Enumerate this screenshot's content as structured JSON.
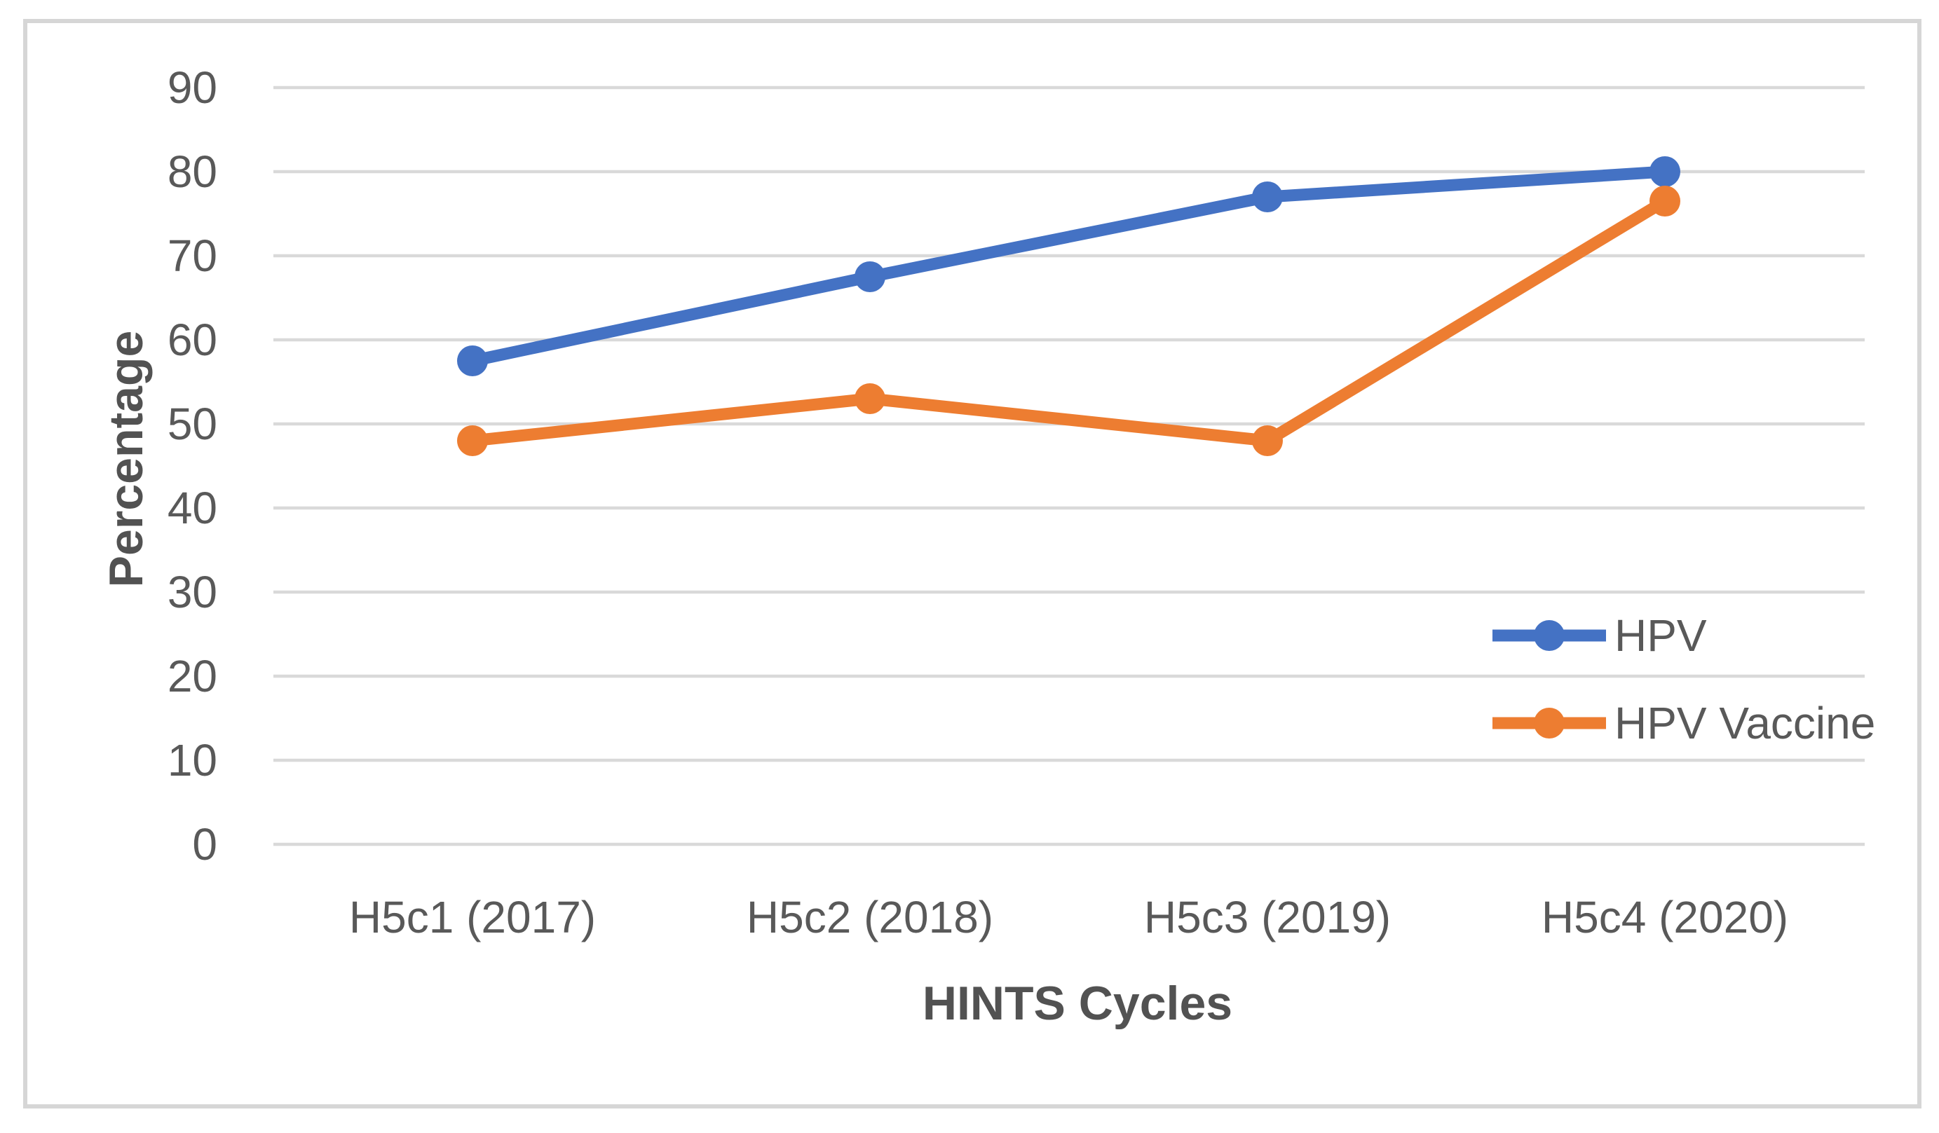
{
  "chart_data": {
    "type": "line",
    "title": "",
    "categories": [
      "H5c1 (2017)",
      "H5c2 (2018)",
      "H5c3 (2019)",
      "H5c4 (2020)"
    ],
    "series": [
      {
        "name": "HPV",
        "color": "#4472C4",
        "values": [
          57.5,
          67.5,
          77,
          80
        ]
      },
      {
        "name": "HPV Vaccine",
        "color": "#ED7D31",
        "values": [
          48,
          53,
          48,
          76.5
        ]
      }
    ],
    "xlabel": "HINTS Cycles",
    "ylabel": "Percentage",
    "ylim": [
      0,
      90
    ],
    "ytick_step": 10,
    "yticks": [
      90,
      80,
      70,
      60,
      50,
      40,
      30,
      20,
      10,
      0
    ],
    "grid": "horizontal",
    "gridline_color": "#D9D9D9",
    "frame_color": "#D6D6D6",
    "text_color": "#595959",
    "legend_position": "inside-right",
    "marker": "circle"
  }
}
